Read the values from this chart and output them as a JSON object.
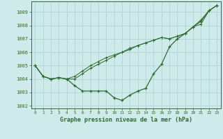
{
  "title": "Graphe pression niveau de la mer (hPa)",
  "bg_color": "#ceeaea",
  "grid_color": "#aed0d0",
  "line_color": "#2d6a2d",
  "marker_color": "#2d6a2d",
  "xlim": [
    -0.5,
    23.5
  ],
  "ylim": [
    1001.8,
    1009.8
  ],
  "yticks": [
    1002,
    1003,
    1004,
    1005,
    1006,
    1007,
    1008,
    1009
  ],
  "xticks": [
    0,
    1,
    2,
    3,
    4,
    5,
    6,
    7,
    8,
    9,
    10,
    11,
    12,
    13,
    14,
    15,
    16,
    17,
    18,
    19,
    20,
    21,
    22,
    23
  ],
  "series": [
    [
      1005.0,
      1004.2,
      1004.0,
      1004.1,
      1004.0,
      1003.5,
      1003.1,
      1003.1,
      1003.1,
      1003.1,
      1002.6,
      1002.4,
      1002.8,
      1003.1,
      1003.3,
      1004.4,
      1005.1,
      1006.4,
      1007.0,
      1007.4,
      1007.9,
      1008.4,
      1009.1,
      1009.5
    ],
    [
      1005.0,
      1004.2,
      1004.0,
      1004.1,
      1004.0,
      1004.2,
      1004.6,
      1005.0,
      1005.3,
      1005.6,
      1005.8,
      1006.0,
      1006.3,
      1006.5,
      1006.7,
      1006.9,
      1007.1,
      1007.0,
      1007.2,
      1007.4,
      1007.9,
      1008.1,
      1009.1,
      1009.5
    ],
    [
      1005.0,
      1004.2,
      1004.0,
      1004.1,
      1004.0,
      1004.0,
      1004.4,
      1004.8,
      1005.1,
      1005.4,
      1005.7,
      1006.0,
      1006.2,
      1006.5,
      1006.7,
      1006.9,
      1007.1,
      1007.0,
      1007.2,
      1007.4,
      1007.9,
      1008.3,
      1009.1,
      1009.5
    ]
  ]
}
